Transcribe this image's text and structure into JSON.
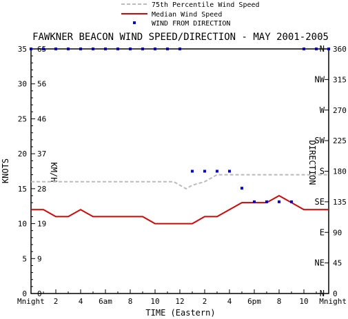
{
  "chart_data": {
    "type": "line",
    "title": "FAWKNER BEACON WIND SPEED/DIRECTION - MAY 2001-2005",
    "xlabel": "TIME (Eastern)",
    "ylabel": "KNOTS",
    "ylabel_kmh": "KM/H",
    "ylabel_right": "DIRECTION",
    "legend": [
      {
        "label": "75th Percentile Wind Speed",
        "color": "#bbbbbb",
        "style": "dashed"
      },
      {
        "label": "Median Wind Speed",
        "color": "#dd0000",
        "style": "solid"
      },
      {
        "label": "WIND FROM DIRECTION",
        "color": "#0000ff",
        "style": "marker"
      }
    ],
    "x_ticks": [
      "Mnight",
      "2",
      "4",
      "6am",
      "8",
      "10",
      "12",
      "2",
      "4",
      "6pm",
      "8",
      "10",
      "Mnight"
    ],
    "ylim": [
      0,
      35
    ],
    "y_ticks_knots": [
      0,
      5,
      10,
      15,
      20,
      25,
      30,
      35
    ],
    "y_ticks_kmh": [
      "0",
      "9",
      "19",
      "28",
      "37",
      "46",
      "56",
      "65"
    ],
    "direction_ticks": [
      {
        "deg": "0",
        "label": "N"
      },
      {
        "deg": "45",
        "label": "NE"
      },
      {
        "deg": "90",
        "label": "E"
      },
      {
        "deg": "135",
        "label": "SE"
      },
      {
        "deg": "180",
        "label": "S"
      },
      {
        "deg": "225",
        "label": "SW"
      },
      {
        "deg": "270",
        "label": "W"
      },
      {
        "deg": "315",
        "label": "NW"
      },
      {
        "deg": "360",
        "label": "N"
      }
    ],
    "series": [
      {
        "name": "75th Percentile Wind Speed",
        "x": [
          0,
          10.5,
          11.5,
          12,
          12.5,
          13,
          14,
          15,
          16,
          17,
          18,
          19,
          20,
          21,
          22,
          23,
          24
        ],
        "values": [
          16,
          16,
          16,
          15.5,
          15,
          15.5,
          16,
          17,
          17,
          17,
          17,
          17,
          17,
          17,
          17,
          17,
          17
        ]
      },
      {
        "name": "Median Wind Speed",
        "x": [
          0,
          1,
          2,
          3,
          4,
          5,
          6,
          7,
          8,
          9,
          10,
          11,
          12,
          13,
          14,
          15,
          16,
          17,
          18,
          19,
          20,
          21,
          22,
          23,
          24
        ],
        "values": [
          12,
          12,
          11,
          11,
          12,
          11,
          11,
          11,
          11,
          11,
          10,
          10,
          10,
          10,
          11,
          11,
          12,
          13,
          13,
          13,
          14,
          13,
          12,
          12,
          12
        ]
      },
      {
        "name": "WIND FROM DIRECTION",
        "x": [
          0,
          1,
          2,
          3,
          4,
          5,
          6,
          7,
          8,
          9,
          10,
          11,
          12,
          13,
          14,
          15,
          16,
          17,
          18,
          19,
          20,
          21,
          22,
          23,
          24
        ],
        "values": [
          360,
          360,
          360,
          360,
          360,
          360,
          360,
          360,
          360,
          360,
          360,
          360,
          360,
          180,
          180,
          180,
          180,
          155,
          135,
          135,
          135,
          135,
          360,
          360,
          360
        ]
      }
    ]
  }
}
